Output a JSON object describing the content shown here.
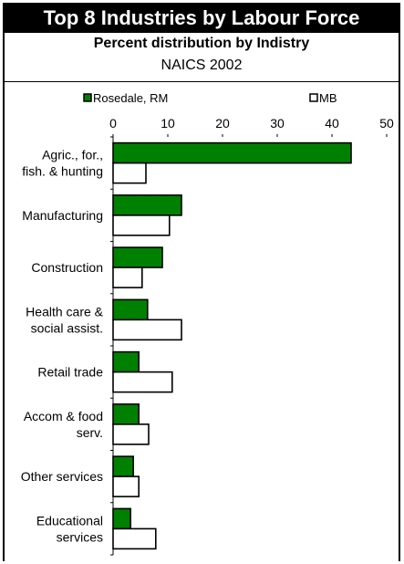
{
  "chart_data": {
    "type": "bar",
    "orientation": "horizontal",
    "title": "Top 8 Industries by Labour Force",
    "subtitle": "Percent distribution by Indistry",
    "subtitle2": "NAICS 2002",
    "categories": [
      [
        "Agric., for.,",
        "fish. & hunting"
      ],
      [
        "Manufacturing"
      ],
      [
        "Construction"
      ],
      [
        "Health care &",
        "social assist."
      ],
      [
        "Retail trade"
      ],
      [
        "Accom & food",
        "serv."
      ],
      [
        "Other services"
      ],
      [
        "Educational",
        "services"
      ]
    ],
    "series": [
      {
        "name": "Rosedale, RM",
        "color": "#008000",
        "values": [
          43.5,
          12.5,
          9,
          6.3,
          4.7,
          4.7,
          3.7,
          3.2
        ]
      },
      {
        "name": "MB",
        "color": "#ffffff",
        "values": [
          6,
          10.3,
          5.3,
          12.5,
          10.8,
          6.5,
          4.7,
          7.8
        ]
      }
    ],
    "xlim": [
      0,
      50
    ],
    "xticks": [
      0,
      10,
      20,
      30,
      40,
      50
    ],
    "legend": "top",
    "grid": false
  }
}
